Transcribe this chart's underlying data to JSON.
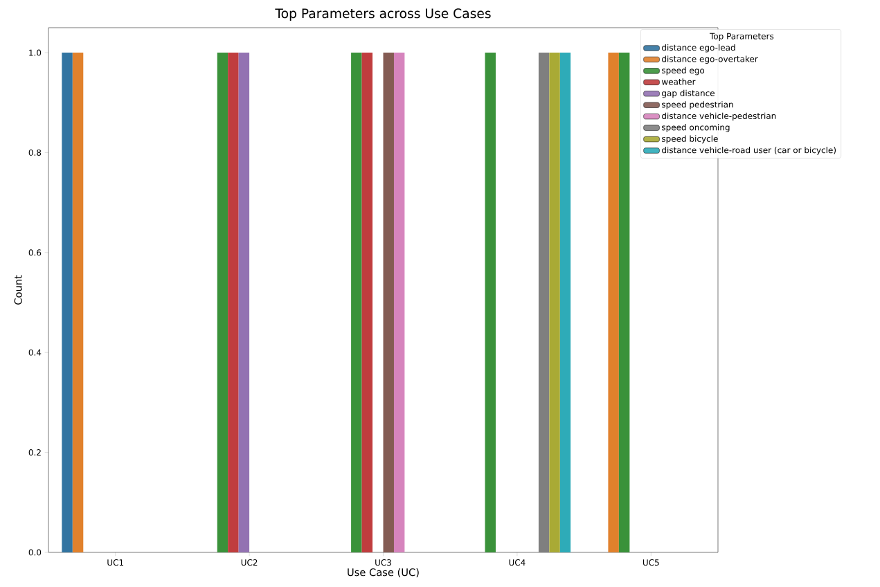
{
  "chart_data": {
    "type": "bar",
    "title": "Top Parameters across Use Cases",
    "xlabel": "Use Case (UC)",
    "ylabel": "Count",
    "categories": [
      "UC1",
      "UC2",
      "UC3",
      "UC4",
      "UC5"
    ],
    "series": [
      {
        "name": "distance ego-lead",
        "color": "#3274a1",
        "values": [
          1,
          null,
          null,
          null,
          null
        ]
      },
      {
        "name": "distance ego-overtaker",
        "color": "#e1812c",
        "values": [
          1,
          null,
          null,
          null,
          1
        ]
      },
      {
        "name": "speed ego",
        "color": "#3a923a",
        "values": [
          null,
          1,
          1,
          1,
          1
        ]
      },
      {
        "name": "weather",
        "color": "#c03d3e",
        "values": [
          null,
          1,
          1,
          null,
          null
        ]
      },
      {
        "name": "gap distance",
        "color": "#9372b2",
        "values": [
          null,
          1,
          null,
          null,
          null
        ]
      },
      {
        "name": "speed pedestrian",
        "color": "#845b53",
        "values": [
          null,
          null,
          1,
          null,
          null
        ]
      },
      {
        "name": "distance vehicle-pedestrian",
        "color": "#d684bd",
        "values": [
          null,
          null,
          1,
          null,
          null
        ]
      },
      {
        "name": "speed oncoming",
        "color": "#7f7f7f",
        "values": [
          null,
          null,
          null,
          1,
          null
        ]
      },
      {
        "name": "speed bicycle",
        "color": "#a9aa35",
        "values": [
          null,
          null,
          null,
          1,
          null
        ]
      },
      {
        "name": "distance vehicle-road user (car or bicycle)",
        "color": "#2eabb8",
        "values": [
          null,
          null,
          null,
          1,
          null
        ]
      }
    ],
    "ylim": [
      0,
      1.05
    ],
    "yticks": [
      {
        "value": 0,
        "label": "0.0"
      },
      {
        "value": 0.2,
        "label": "0.2"
      },
      {
        "value": 0.4,
        "label": "0.4"
      },
      {
        "value": 0.6,
        "label": "0.6"
      },
      {
        "value": 0.8,
        "label": "0.8"
      },
      {
        "value": 1,
        "label": "1.0"
      }
    ],
    "legend_title": "Top Parameters",
    "legend": "top right",
    "grid": false
  }
}
